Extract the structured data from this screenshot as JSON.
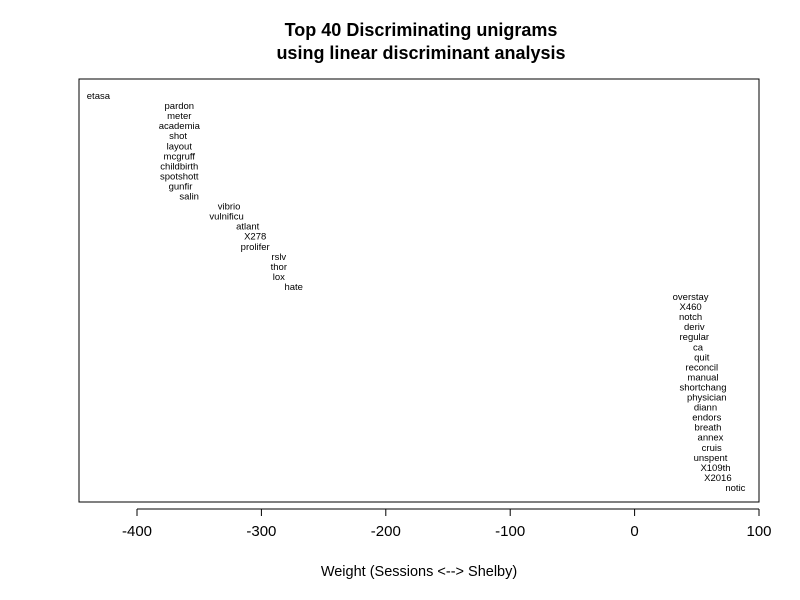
{
  "chart_data": {
    "type": "scatter",
    "title": "Top 40 Discriminating unigrams",
    "subtitle": "using linear discriminant analysis",
    "xlabel": "Weight (Sessions <--> Shelby)",
    "xlim": [
      -450,
      100
    ],
    "x_ticks": [
      -400,
      -300,
      -200,
      -100,
      0,
      100
    ],
    "x_tick_labels": [
      "-400",
      "-300",
      "-200",
      "-100",
      "0",
      "100"
    ],
    "points": [
      {
        "label": "etasa",
        "x": -431
      },
      {
        "label": "pardon",
        "x": -366
      },
      {
        "label": "meter",
        "x": -366
      },
      {
        "label": "academia",
        "x": -366
      },
      {
        "label": "shot",
        "x": -367
      },
      {
        "label": "layout",
        "x": -366
      },
      {
        "label": "mcgruff",
        "x": -366
      },
      {
        "label": "childbirth",
        "x": -366
      },
      {
        "label": "spotshott",
        "x": -366
      },
      {
        "label": "gunfir",
        "x": -365
      },
      {
        "label": "salin",
        "x": -358
      },
      {
        "label": "vibrio",
        "x": -326
      },
      {
        "label": "vulnificu",
        "x": -328
      },
      {
        "label": "atlant",
        "x": -311
      },
      {
        "label": "X278",
        "x": -305
      },
      {
        "label": "prolifer",
        "x": -305
      },
      {
        "label": "rslv",
        "x": -286
      },
      {
        "label": "thor",
        "x": -286
      },
      {
        "label": "lox",
        "x": -286
      },
      {
        "label": "hate",
        "x": -274
      },
      {
        "label": "overstay",
        "x": 45
      },
      {
        "label": "X460",
        "x": 45
      },
      {
        "label": "notch",
        "x": 45
      },
      {
        "label": "deriv",
        "x": 48
      },
      {
        "label": "regular",
        "x": 48
      },
      {
        "label": "ca",
        "x": 51
      },
      {
        "label": "quit",
        "x": 54
      },
      {
        "label": "reconcil",
        "x": 54
      },
      {
        "label": "manual",
        "x": 55
      },
      {
        "label": "shortchang",
        "x": 55
      },
      {
        "label": "physician",
        "x": 58
      },
      {
        "label": "diann",
        "x": 57
      },
      {
        "label": "endors",
        "x": 58
      },
      {
        "label": "breath",
        "x": 59
      },
      {
        "label": "annex",
        "x": 61
      },
      {
        "label": "cruis",
        "x": 62
      },
      {
        "label": "unspent",
        "x": 61
      },
      {
        "label": "X109th",
        "x": 65
      },
      {
        "label": "X2016",
        "x": 67
      },
      {
        "label": "notic",
        "x": 81
      }
    ],
    "y_axis": "rank order (none drawn)",
    "grid": false,
    "legend": "none"
  }
}
